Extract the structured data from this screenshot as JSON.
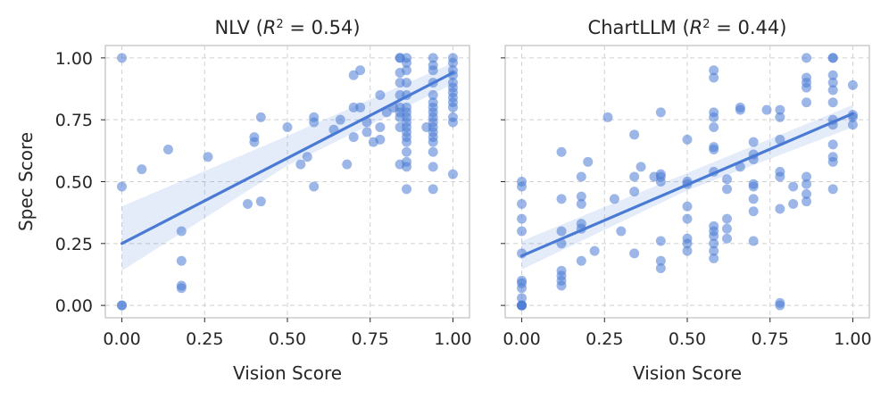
{
  "chart_data": [
    {
      "type": "scatter",
      "title": "NLV (R² = 0.54)",
      "title_prefix": "NLV (",
      "title_var": "R",
      "title_exp": "2",
      "title_suffix": " = 0.54)",
      "xlabel": "Vision Score",
      "ylabel": "Spec Score",
      "xlim": [
        -0.05,
        1.05
      ],
      "ylim": [
        -0.05,
        1.05
      ],
      "xticks": [
        0.0,
        0.25,
        0.5,
        0.75,
        1.0
      ],
      "xtick_labels": [
        "0.00",
        "0.25",
        "0.50",
        "0.75",
        "1.00"
      ],
      "yticks": [
        0.0,
        0.25,
        0.5,
        0.75,
        1.0
      ],
      "ytick_labels": [
        "0.00",
        "0.25",
        "0.50",
        "0.75",
        "1.00"
      ],
      "grid": true,
      "r_squared": 0.54,
      "regression": {
        "x": [
          0.0,
          1.0
        ],
        "y": [
          0.25,
          0.94
        ]
      },
      "ci_band": {
        "x": [
          0.0,
          0.5,
          1.0
        ],
        "lower": [
          0.14,
          0.565,
          0.895
        ],
        "upper": [
          0.4,
          0.685,
          0.98
        ]
      },
      "points": {
        "x": [
          0.0,
          0.0,
          0.0,
          0.0,
          0.06,
          0.14,
          0.18,
          0.18,
          0.18,
          0.18,
          0.26,
          0.38,
          0.4,
          0.4,
          0.42,
          0.42,
          0.5,
          0.54,
          0.56,
          0.58,
          0.58,
          0.58,
          0.64,
          0.66,
          0.68,
          0.7,
          0.7,
          0.7,
          0.72,
          0.72,
          0.74,
          0.74,
          0.76,
          0.78,
          0.78,
          0.78,
          0.8,
          0.82,
          0.84,
          0.84,
          0.84,
          0.84,
          0.84,
          0.84,
          0.84,
          0.84,
          0.84,
          0.84,
          0.86,
          0.86,
          0.86,
          0.86,
          0.86,
          0.86,
          0.86,
          0.86,
          0.86,
          0.86,
          0.86,
          0.86,
          0.86,
          0.86,
          0.86,
          0.86,
          0.86,
          0.92,
          0.94,
          0.94,
          0.94,
          0.94,
          0.94,
          0.94,
          0.94,
          0.94,
          0.94,
          0.94,
          0.94,
          0.94,
          0.94,
          0.94,
          0.94,
          0.94,
          0.94,
          1.0,
          1.0,
          1.0,
          1.0,
          1.0,
          1.0,
          1.0,
          1.0,
          1.0,
          1.0,
          1.0,
          1.0,
          1.0
        ],
        "y": [
          1.0,
          0.48,
          0.0,
          0.0,
          0.55,
          0.63,
          0.3,
          0.18,
          0.08,
          0.07,
          0.6,
          0.41,
          0.68,
          0.66,
          0.76,
          0.42,
          0.72,
          0.57,
          0.6,
          0.76,
          0.74,
          0.48,
          0.71,
          0.75,
          0.57,
          0.93,
          0.8,
          0.68,
          0.95,
          0.8,
          0.74,
          0.7,
          0.66,
          0.85,
          0.72,
          0.67,
          0.78,
          0.8,
          1.0,
          1.0,
          0.94,
          0.9,
          0.85,
          0.8,
          0.78,
          0.76,
          0.72,
          0.57,
          1.0,
          0.98,
          0.95,
          0.9,
          0.85,
          0.8,
          0.78,
          0.76,
          0.74,
          0.72,
          0.7,
          0.68,
          0.66,
          0.62,
          0.58,
          0.56,
          0.47,
          0.72,
          1.0,
          0.97,
          0.95,
          0.9,
          0.85,
          0.82,
          0.8,
          0.78,
          0.76,
          0.74,
          0.72,
          0.7,
          0.68,
          0.66,
          0.62,
          0.56,
          0.47,
          1.0,
          0.98,
          0.95,
          0.93,
          0.9,
          0.88,
          0.86,
          0.84,
          0.82,
          0.8,
          0.76,
          0.74,
          0.53
        ]
      }
    },
    {
      "type": "scatter",
      "title": "ChartLLM (R² = 0.44)",
      "title_prefix": "ChartLLM (",
      "title_var": "R",
      "title_exp": "2",
      "title_suffix": " = 0.44)",
      "xlabel": "Vision Score",
      "ylabel": "",
      "xlim": [
        -0.05,
        1.05
      ],
      "ylim": [
        -0.05,
        1.05
      ],
      "xticks": [
        0.0,
        0.25,
        0.5,
        0.75,
        1.0
      ],
      "xtick_labels": [
        "0.00",
        "0.25",
        "0.50",
        "0.75",
        "1.00"
      ],
      "yticks": [
        0.0,
        0.25,
        0.5,
        0.75,
        1.0
      ],
      "ytick_labels": [],
      "grid": true,
      "r_squared": 0.44,
      "regression": {
        "x": [
          0.0,
          1.0
        ],
        "y": [
          0.2,
          0.775
        ]
      },
      "ci_band": {
        "x": [
          0.0,
          0.5,
          1.0
        ],
        "lower": [
          0.145,
          0.465,
          0.72
        ],
        "upper": [
          0.26,
          0.535,
          0.81
        ]
      },
      "points": {
        "x": [
          0.0,
          0.0,
          0.0,
          0.0,
          0.0,
          0.0,
          0.0,
          0.0,
          0.0,
          0.0,
          0.0,
          0.0,
          0.0,
          0.0,
          0.12,
          0.12,
          0.12,
          0.12,
          0.12,
          0.12,
          0.12,
          0.12,
          0.18,
          0.18,
          0.18,
          0.18,
          0.18,
          0.18,
          0.2,
          0.22,
          0.26,
          0.28,
          0.3,
          0.34,
          0.34,
          0.34,
          0.34,
          0.36,
          0.4,
          0.42,
          0.42,
          0.42,
          0.42,
          0.42,
          0.42,
          0.42,
          0.5,
          0.5,
          0.5,
          0.5,
          0.5,
          0.5,
          0.5,
          0.5,
          0.58,
          0.58,
          0.58,
          0.58,
          0.58,
          0.58,
          0.58,
          0.58,
          0.58,
          0.58,
          0.58,
          0.58,
          0.58,
          0.58,
          0.62,
          0.62,
          0.62,
          0.62,
          0.62,
          0.66,
          0.66,
          0.66,
          0.7,
          0.7,
          0.7,
          0.7,
          0.7,
          0.7,
          0.7,
          0.7,
          0.74,
          0.78,
          0.78,
          0.78,
          0.78,
          0.78,
          0.78,
          0.78,
          0.78,
          0.82,
          0.82,
          0.86,
          0.86,
          0.86,
          0.86,
          0.86,
          0.86,
          0.86,
          0.86,
          0.86,
          0.94,
          0.94,
          0.94,
          0.94,
          0.94,
          0.94,
          0.94,
          0.94,
          0.94,
          0.94,
          0.94,
          0.94,
          1.0,
          1.0,
          1.0,
          1.0
        ],
        "y": [
          0.5,
          0.48,
          0.41,
          0.35,
          0.3,
          0.21,
          0.1,
          0.09,
          0.07,
          0.03,
          0.0,
          0.0,
          0.0,
          0.0,
          0.62,
          0.43,
          0.3,
          0.25,
          0.14,
          0.12,
          0.1,
          0.08,
          0.52,
          0.44,
          0.41,
          0.33,
          0.31,
          0.18,
          0.58,
          0.22,
          0.76,
          0.43,
          0.3,
          0.69,
          0.52,
          0.46,
          0.21,
          0.56,
          0.52,
          0.78,
          0.53,
          0.52,
          0.5,
          0.26,
          0.18,
          0.15,
          0.67,
          0.5,
          0.49,
          0.4,
          0.35,
          0.27,
          0.25,
          0.22,
          0.95,
          0.92,
          0.78,
          0.76,
          0.72,
          0.64,
          0.63,
          0.54,
          0.32,
          0.3,
          0.28,
          0.25,
          0.22,
          0.19,
          0.51,
          0.47,
          0.35,
          0.31,
          0.27,
          0.8,
          0.79,
          0.56,
          0.66,
          0.61,
          0.59,
          0.49,
          0.48,
          0.43,
          0.38,
          0.26,
          0.79,
          0.79,
          0.76,
          0.67,
          0.54,
          0.52,
          0.39,
          0.01,
          0.0,
          0.48,
          0.41,
          1.0,
          0.92,
          0.9,
          0.88,
          0.82,
          0.52,
          0.49,
          0.45,
          0.42,
          1.0,
          1.0,
          0.93,
          0.9,
          0.87,
          0.82,
          0.75,
          0.73,
          0.65,
          0.6,
          0.58,
          0.47,
          0.89,
          0.77,
          0.76,
          0.73
        ]
      }
    }
  ],
  "colors": {
    "points": "#4a7bd4",
    "line": "#4a7bd4",
    "band": "#4a7bd4",
    "grid": "#d0d0d0",
    "frame": "#cccccc",
    "tick": "#262626"
  }
}
